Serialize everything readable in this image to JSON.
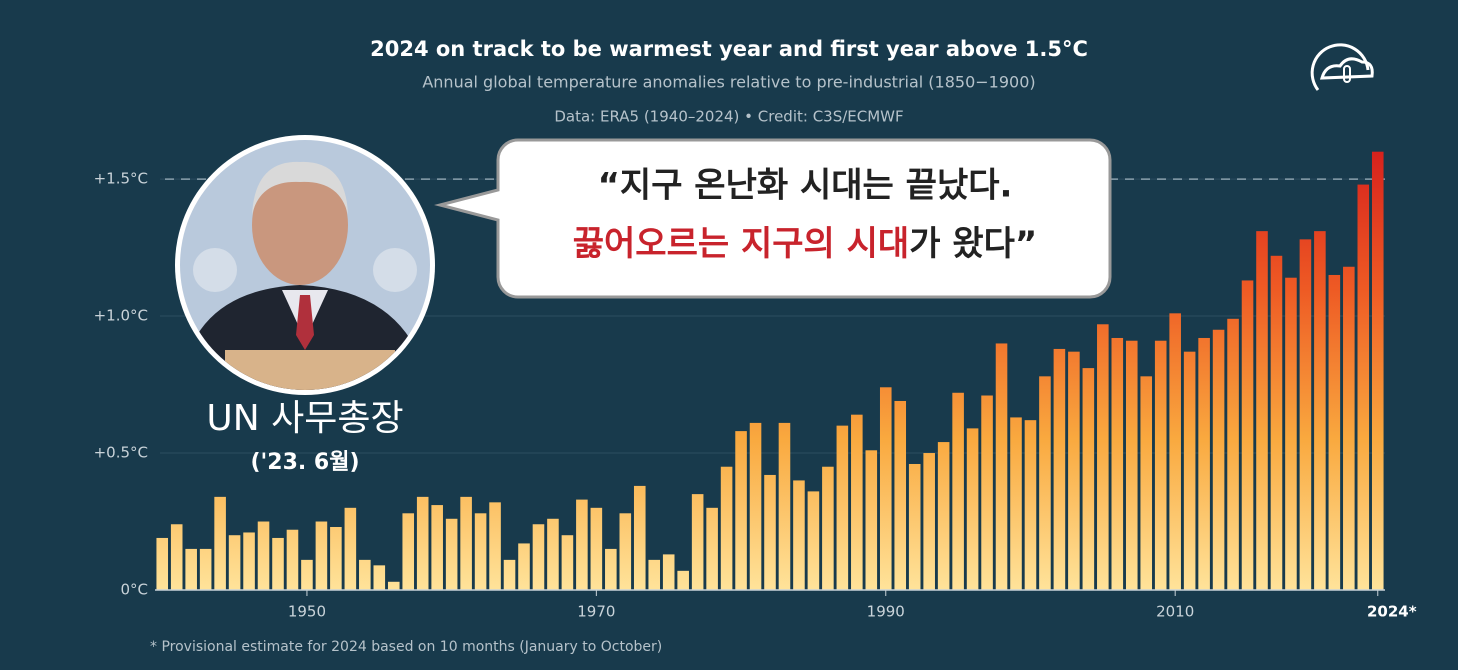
{
  "chart_data": {
    "type": "bar",
    "title": "2024 on track to be warmest year and first year above 1.5°C",
    "subtitle": "Annual global temperature anomalies relative to pre-industrial (1850−1900)",
    "source": "Data: ERA5 (1940–2024) • Credit: C3S/ECMWF",
    "footnote": "* Provisional estimate for 2024 based on 10 months (January to October)",
    "x": [
      1940,
      1941,
      1942,
      1943,
      1944,
      1945,
      1946,
      1947,
      1948,
      1949,
      1950,
      1951,
      1952,
      1953,
      1954,
      1955,
      1956,
      1957,
      1958,
      1959,
      1960,
      1961,
      1962,
      1963,
      1964,
      1965,
      1966,
      1967,
      1968,
      1969,
      1970,
      1971,
      1972,
      1973,
      1974,
      1975,
      1976,
      1977,
      1978,
      1979,
      1980,
      1981,
      1982,
      1983,
      1984,
      1985,
      1986,
      1987,
      1988,
      1989,
      1990,
      1991,
      1992,
      1993,
      1994,
      1995,
      1996,
      1997,
      1998,
      1999,
      2000,
      2001,
      2002,
      2003,
      2004,
      2005,
      2006,
      2007,
      2008,
      2009,
      2010,
      2011,
      2012,
      2013,
      2014,
      2015,
      2016,
      2017,
      2018,
      2019,
      2020,
      2021,
      2022,
      2023,
      2024
    ],
    "values": [
      0.19,
      0.24,
      0.15,
      0.15,
      0.34,
      0.2,
      0.21,
      0.25,
      0.19,
      0.22,
      0.11,
      0.25,
      0.23,
      0.3,
      0.11,
      0.09,
      0.03,
      0.28,
      0.34,
      0.31,
      0.26,
      0.34,
      0.28,
      0.32,
      0.11,
      0.17,
      0.24,
      0.26,
      0.2,
      0.33,
      0.3,
      0.15,
      0.28,
      0.38,
      0.11,
      0.13,
      0.07,
      0.35,
      0.3,
      0.45,
      0.58,
      0.61,
      0.42,
      0.61,
      0.4,
      0.36,
      0.45,
      0.6,
      0.64,
      0.51,
      0.74,
      0.69,
      0.46,
      0.5,
      0.54,
      0.72,
      0.59,
      0.71,
      0.9,
      0.63,
      0.62,
      0.78,
      0.88,
      0.87,
      0.81,
      0.97,
      0.92,
      0.91,
      0.78,
      0.91,
      1.01,
      0.87,
      0.92,
      0.95,
      0.99,
      1.13,
      1.31,
      1.22,
      1.14,
      1.28,
      1.31,
      1.15,
      1.18,
      1.48,
      1.6
    ],
    "xlim": [
      1939.5,
      2024.5
    ],
    "xticks": [
      1950,
      1970,
      1990,
      2010,
      {
        "value": 2024,
        "label": "2024*"
      }
    ],
    "ylim": [
      0,
      1.65
    ],
    "yticks": [
      {
        "value": 0,
        "label": "0°C"
      },
      {
        "value": 0.5,
        "label": "+0.5°C"
      },
      {
        "value": 1,
        "label": "+1.0°C"
      },
      {
        "value": 1.5,
        "label": "+1.5°C"
      }
    ],
    "threshold_line": 1.5,
    "grid": true,
    "color_scale": [
      "#ffe39a",
      "#f9a93f",
      "#ee5a24",
      "#d41c1c"
    ]
  },
  "overlay": {
    "quote_line1": "“지구 온난화 시대는 끝났다.",
    "quote_line2_red": "끓어오르는 지구의 시대",
    "quote_line2_rest": "가 왔다”",
    "caption": "UN 사무총장",
    "caption_date": "('23. 6월)"
  }
}
